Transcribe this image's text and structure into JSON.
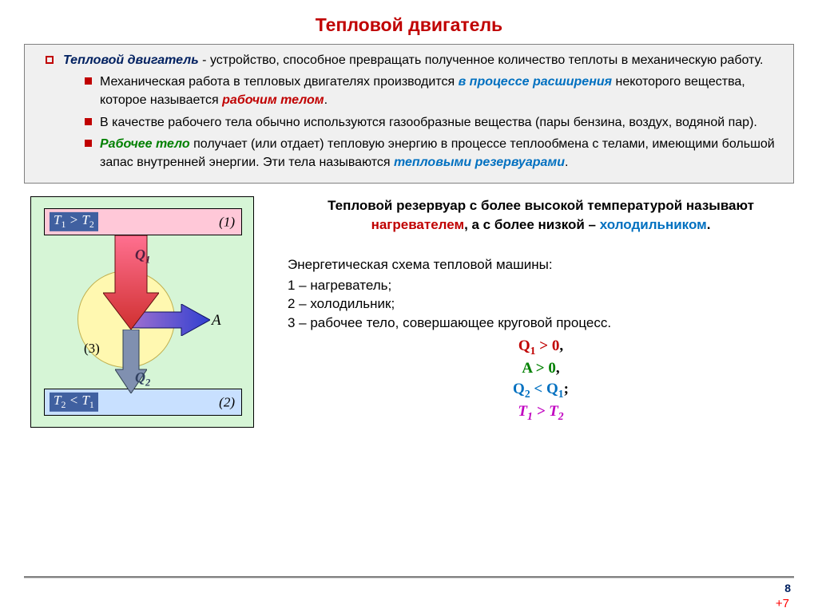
{
  "title": "Тепловой двигатель",
  "box": {
    "lead_bold": "Тепловой двигатель",
    "lead_rest": " - устройство, способное превращать полученное количество теплоты в механическую работу.",
    "item1_a": "Механическая работа в тепловых двигателях производится ",
    "item1_b": "в процессе расширения",
    "item1_c": " некоторого вещества, которое называется ",
    "item1_d": "рабочим телом",
    "item1_e": ".",
    "item2": "В качестве рабочего тела обычно используются газообразные вещества (пары бензина, воздух, водяной пар).",
    "item3_a": "Рабочее тело",
    "item3_b": " получает (или отдает) тепловую энергию в процессе теплообмена с телами, имеющими большой запас внутренней энергии. Эти тела называются ",
    "item3_c": "тепловыми резервуарами",
    "item3_d": "."
  },
  "reservoir": {
    "a": "Тепловой резервуар с более высокой температурой называют ",
    "heater": "нагревателем",
    "b": ", а с более низкой – ",
    "cooler": "холодильником",
    "c": "."
  },
  "scheme": {
    "head": "Энергетическая схема тепловой машины:",
    "l1": "1 – нагреватель;",
    "l2": "2 – холодильник;",
    "l3": "3 – рабочее тело, совершающее круговой процесс."
  },
  "formulas": {
    "q1": {
      "sym": "Q",
      "sub": "1",
      "rest": " > 0",
      "tail": ","
    },
    "a": {
      "sym": "A",
      "rest": " > 0",
      "tail": ","
    },
    "q2": {
      "sym1": "Q",
      "sub1": "2",
      "mid": " < ",
      "sym2": "Q",
      "sub2": "1",
      "tail": ";"
    },
    "t": {
      "sym1": "T",
      "sub1": "1",
      "mid": " > ",
      "sym2": "T",
      "sub2": "2"
    }
  },
  "diagram": {
    "bg": "#d6f5d6",
    "hot_fill": "#ffc8d8",
    "cold_fill": "#c8e0ff",
    "circle_fill": "#fff8b0",
    "hot_label_html": "T<sub>1</sub> > T<sub>2</sub>",
    "hot_num": "(1)",
    "cold_label_html": "T<sub>2</sub> < T<sub>1</sub>",
    "cold_num": "(2)",
    "three": "(3)",
    "q1": "Q<sub>1</sub>",
    "q2": "Q<sub>2</sub>",
    "A": "A",
    "arrow_red_fill_top": "#ff7090",
    "arrow_red_fill_bot": "#d03030",
    "arrow_blue_fill_l": "#a070d0",
    "arrow_blue_fill_r": "#3040d0",
    "arrow_small_fill": "#8090b0"
  },
  "page": "8",
  "plus": "+7"
}
